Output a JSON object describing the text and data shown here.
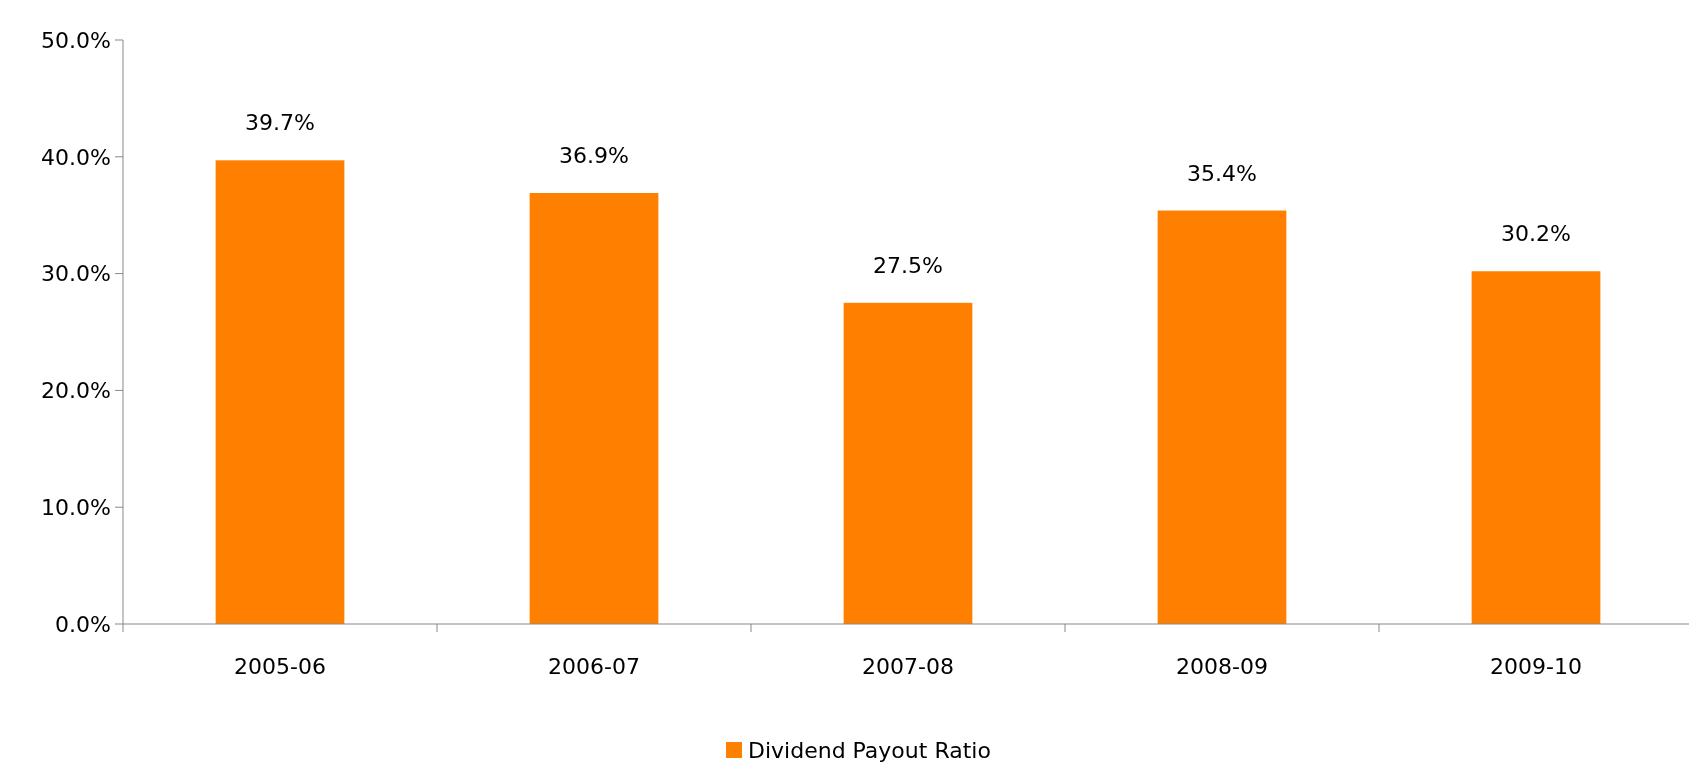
{
  "chart_data": {
    "type": "bar",
    "categories": [
      "2005-06",
      "2006-07",
      "2007-08",
      "2008-09",
      "2009-10"
    ],
    "series": [
      {
        "name": "Dividend Payout Ratio",
        "color": "#ff8000",
        "values": [
          39.7,
          36.9,
          27.5,
          35.4,
          30.2
        ]
      }
    ],
    "ylim": [
      0,
      50
    ],
    "yticks": [
      {
        "value": 0,
        "label": "0.0%"
      },
      {
        "value": 10,
        "label": "10.0%"
      },
      {
        "value": 20,
        "label": "20.0%"
      },
      {
        "value": 30,
        "label": "30.0%"
      },
      {
        "value": 40,
        "label": "40.0%"
      },
      {
        "value": 50,
        "label": "50.0%"
      }
    ],
    "value_labels": [
      "39.7%",
      "36.9%",
      "27.5%",
      "35.4%",
      "30.2%"
    ],
    "legend": "bottom",
    "grid": false
  }
}
